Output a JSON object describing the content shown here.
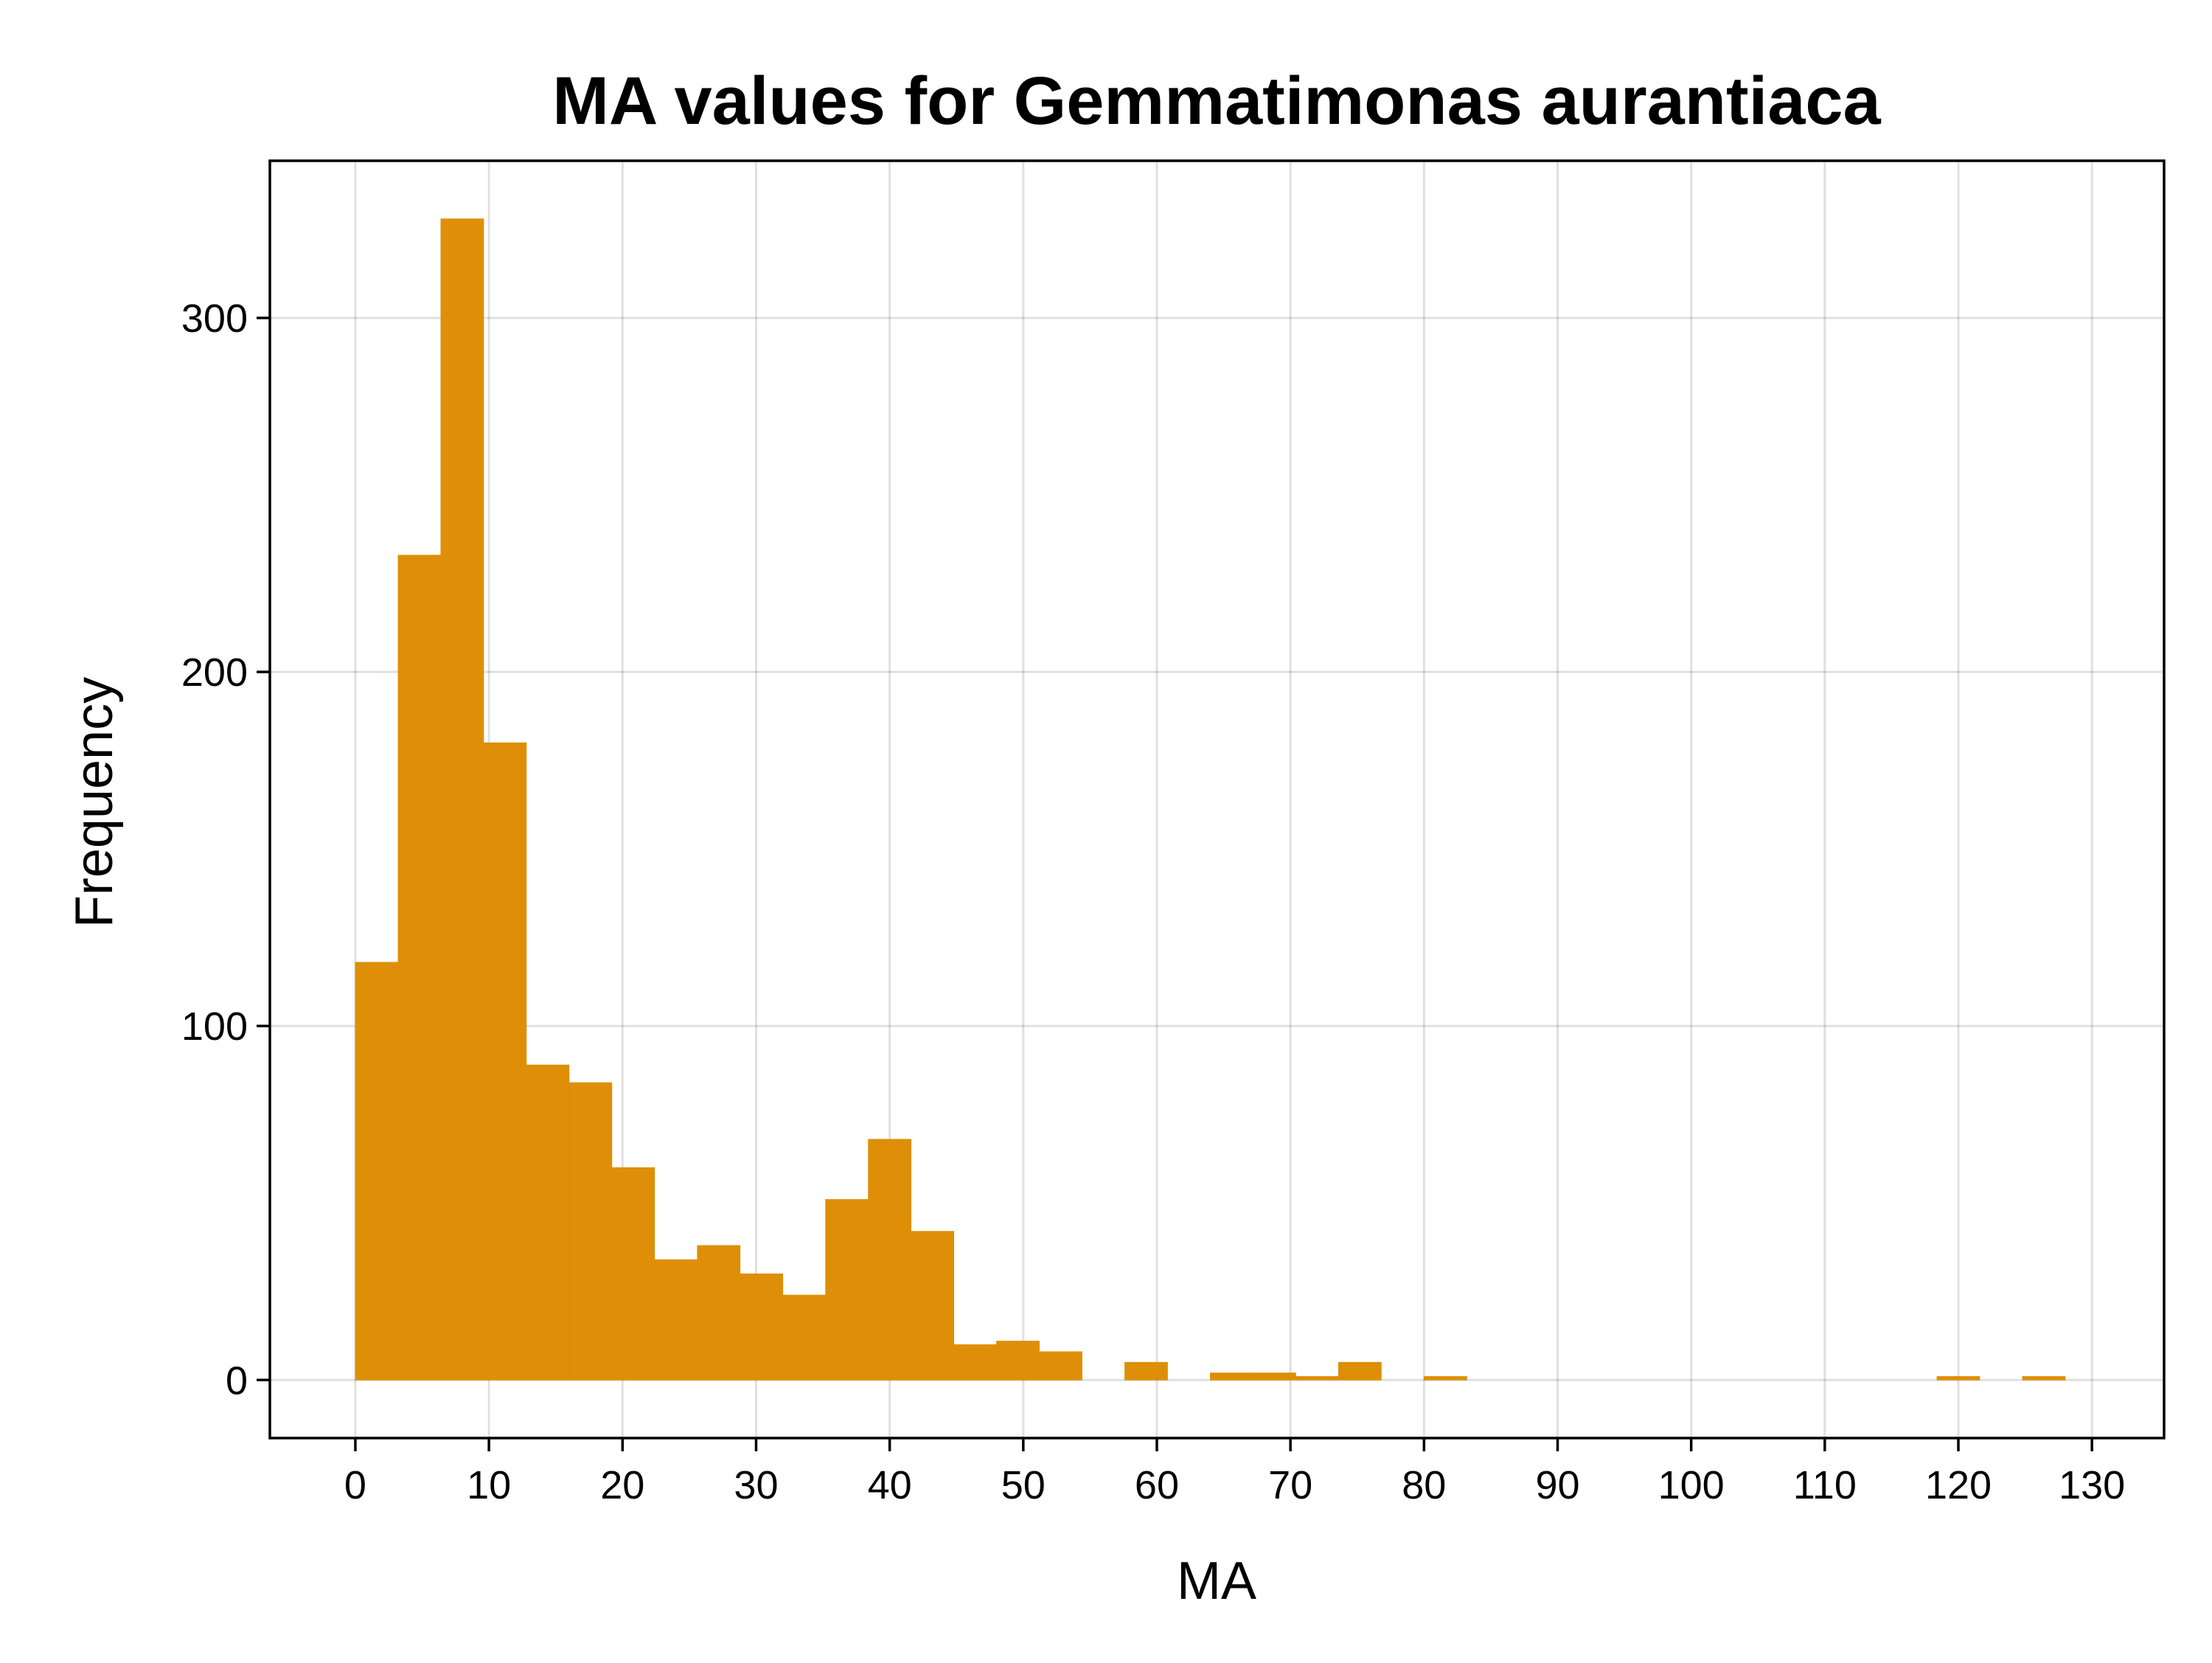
{
  "chart_data": {
    "type": "bar",
    "title": "MA values for Gemmatimonas aurantiaca",
    "xlabel": "MA",
    "ylabel": "Frequency",
    "bin_width": 3.2,
    "bins": [
      {
        "x0": 0.0,
        "value": 118
      },
      {
        "x0": 3.2,
        "value": 233
      },
      {
        "x0": 6.4,
        "value": 328
      },
      {
        "x0": 9.6,
        "value": 180
      },
      {
        "x0": 12.8,
        "value": 89
      },
      {
        "x0": 16.0,
        "value": 84
      },
      {
        "x0": 19.2,
        "value": 60
      },
      {
        "x0": 22.4,
        "value": 34
      },
      {
        "x0": 25.6,
        "value": 38
      },
      {
        "x0": 28.8,
        "value": 30
      },
      {
        "x0": 32.0,
        "value": 24
      },
      {
        "x0": 35.2,
        "value": 51
      },
      {
        "x0": 38.4,
        "value": 68
      },
      {
        "x0": 41.6,
        "value": 42
      },
      {
        "x0": 44.8,
        "value": 10
      },
      {
        "x0": 48.0,
        "value": 11
      },
      {
        "x0": 51.2,
        "value": 8
      },
      {
        "x0": 57.6,
        "value": 5
      },
      {
        "x0": 64.0,
        "value": 2
      },
      {
        "x0": 67.2,
        "value": 2
      },
      {
        "x0": 70.4,
        "value": 1
      },
      {
        "x0": 73.6,
        "value": 5
      },
      {
        "x0": 80.0,
        "value": 1
      },
      {
        "x0": 118.4,
        "value": 1
      },
      {
        "x0": 124.8,
        "value": 1
      }
    ],
    "xticks": [
      0,
      10,
      20,
      30,
      40,
      50,
      60,
      70,
      80,
      90,
      100,
      110,
      120,
      130
    ],
    "yticks": [
      0,
      100,
      200,
      300
    ],
    "xlim": [
      -6.4,
      135.4
    ],
    "ylim": [
      -16.4,
      344.4
    ],
    "bar_color": "#DE8F07",
    "grid": true
  }
}
